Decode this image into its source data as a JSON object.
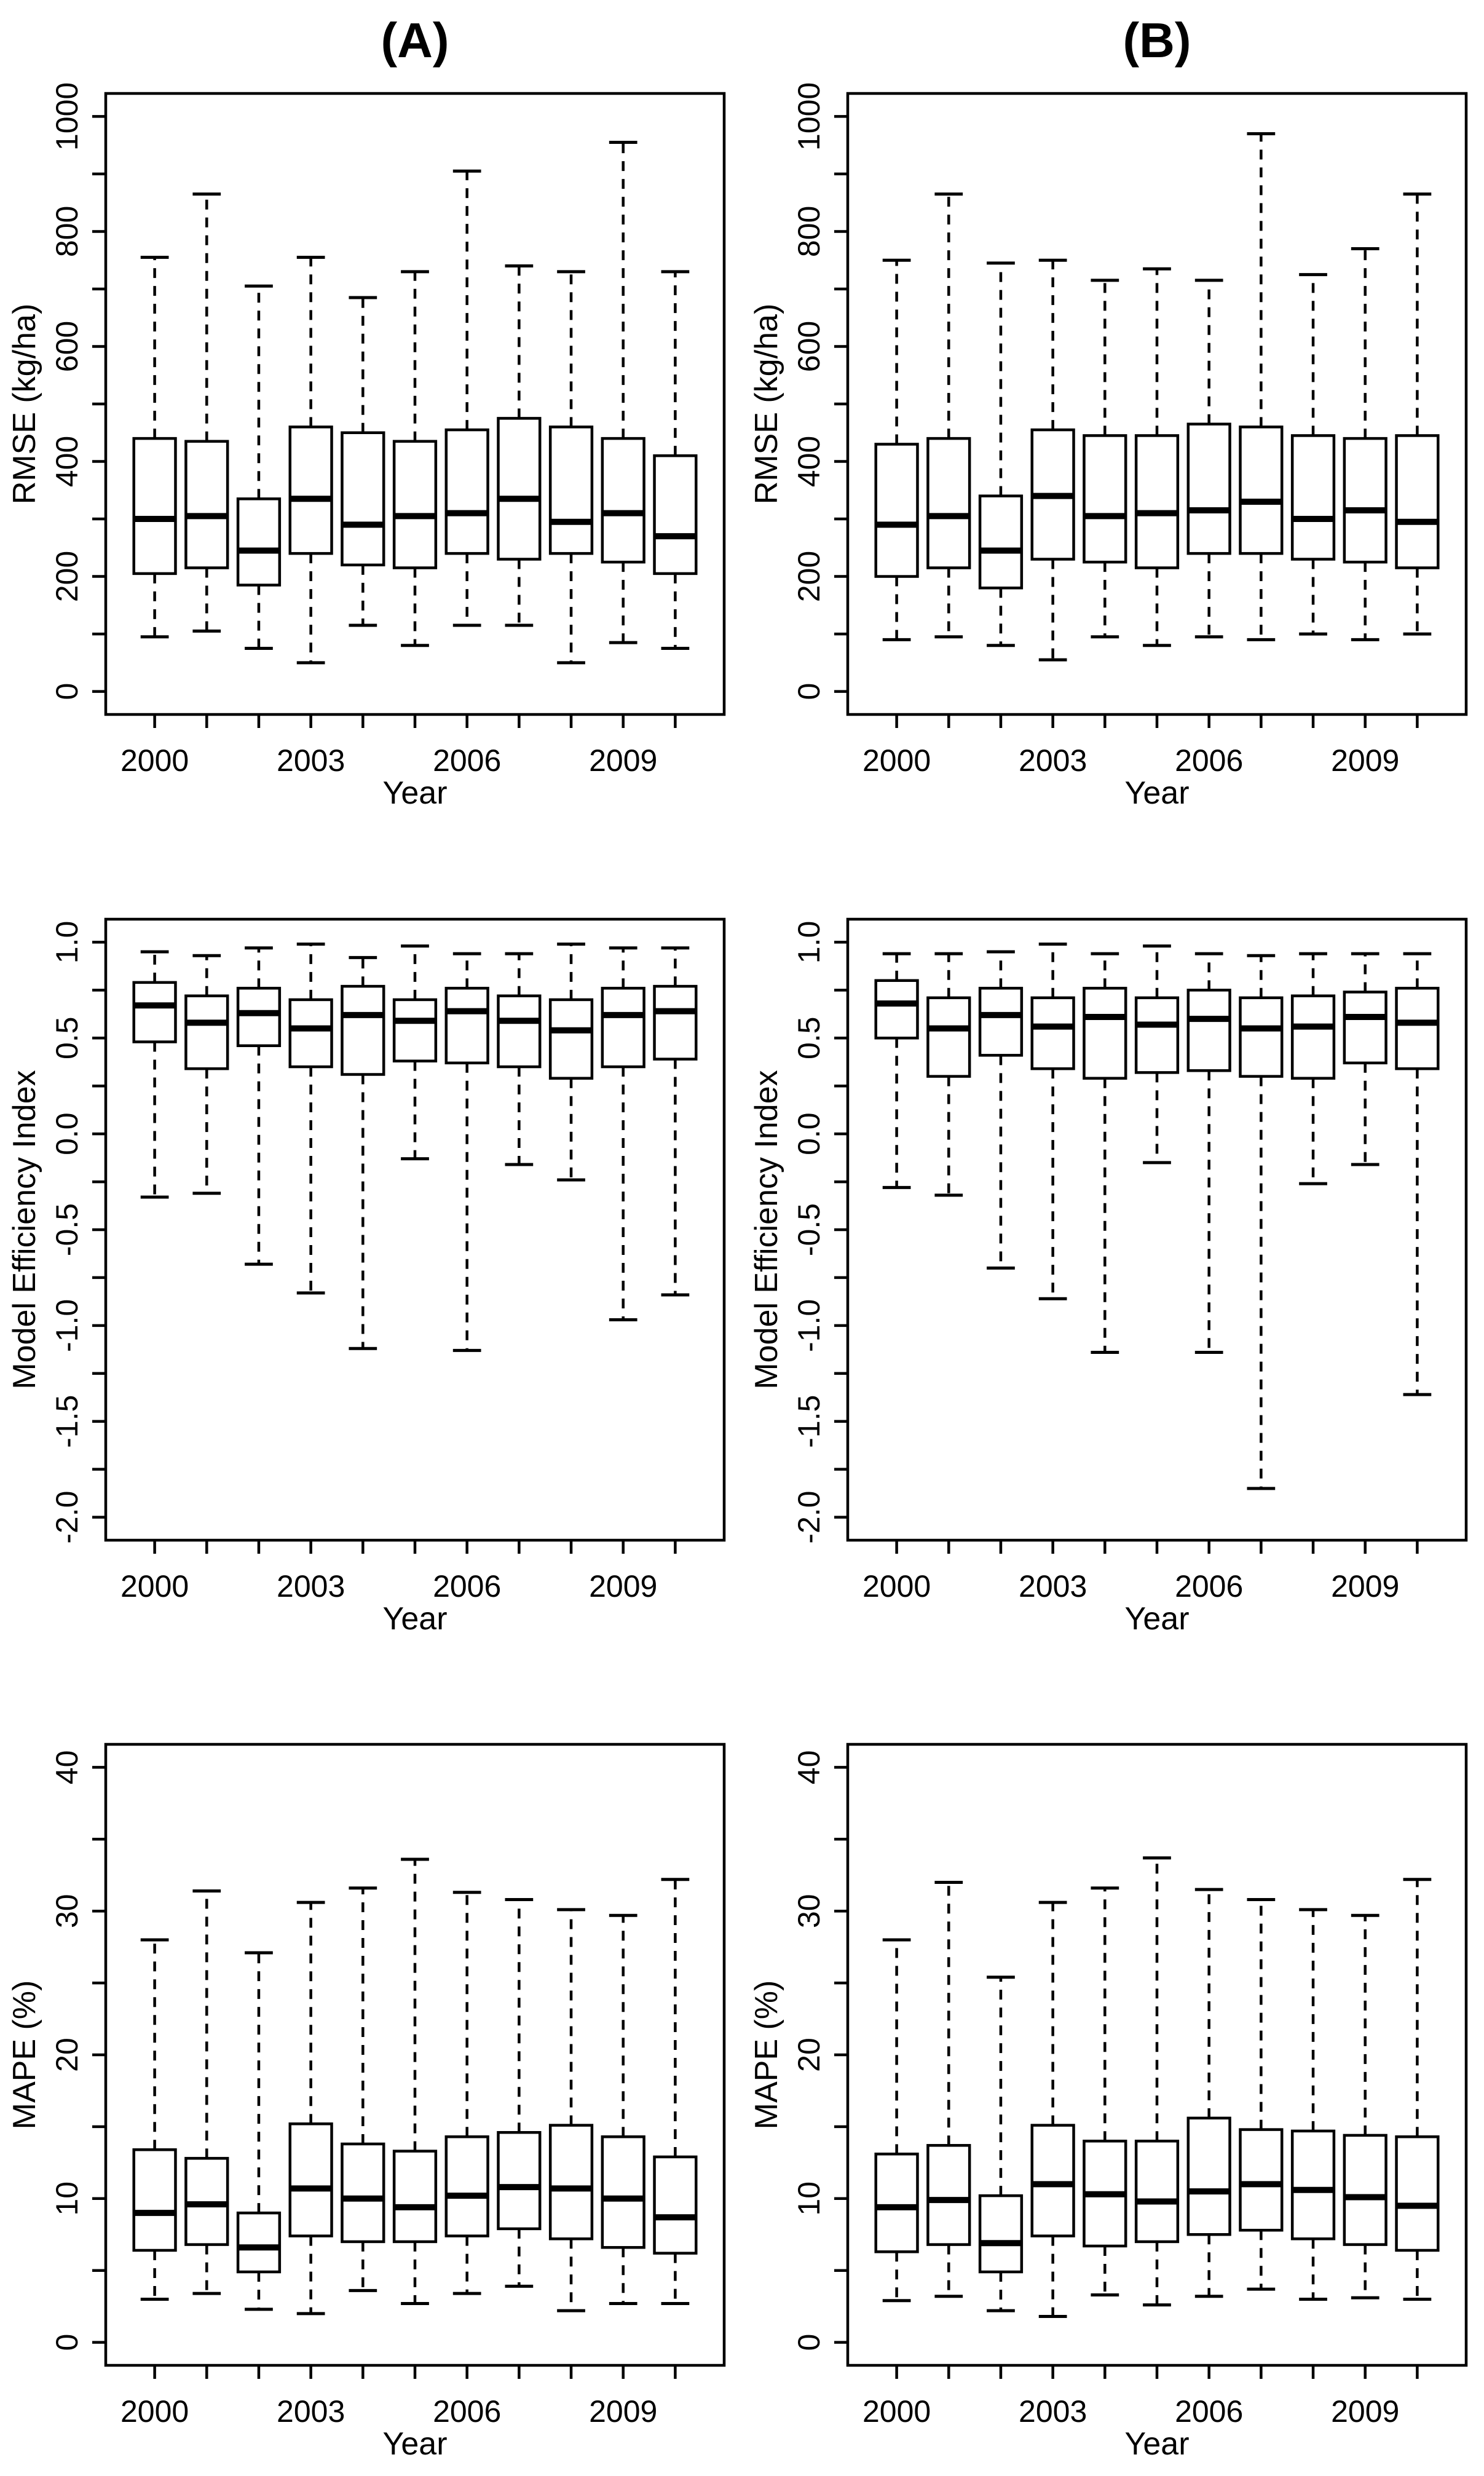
{
  "figure": {
    "column_titles": [
      "(A)",
      "(B)"
    ],
    "x_axis_title": "Year",
    "row_y_axis_titles": [
      "RMSE (kg/ha)",
      "Model Efficiency Index",
      "MAPE (%)"
    ],
    "background_color": "#ffffff",
    "line_color": "#000000"
  },
  "chart_data": [
    {
      "id": "rmse-A",
      "type": "boxplot",
      "title": "(A)",
      "ylabel": "RMSE (kg/ha)",
      "xlabel": "Year",
      "ylim": [
        0,
        1000
      ],
      "ytick_minor": 100,
      "ytick_major": 200,
      "ytick_decimals": 0,
      "years": [
        2000,
        2001,
        2002,
        2003,
        2004,
        2005,
        2006,
        2007,
        2008,
        2009,
        2010
      ],
      "xtick_labels": [
        2000,
        2003,
        2006,
        2009
      ],
      "grid": false,
      "legend": "none",
      "boxes": [
        {
          "year": 2000,
          "low": 95,
          "q1": 205,
          "med": 300,
          "q3": 440,
          "high": 755
        },
        {
          "year": 2001,
          "low": 105,
          "q1": 215,
          "med": 305,
          "q3": 435,
          "high": 865
        },
        {
          "year": 2002,
          "low": 75,
          "q1": 185,
          "med": 245,
          "q3": 335,
          "high": 705
        },
        {
          "year": 2003,
          "low": 50,
          "q1": 240,
          "med": 335,
          "q3": 460,
          "high": 755
        },
        {
          "year": 2004,
          "low": 115,
          "q1": 220,
          "med": 290,
          "q3": 450,
          "high": 685
        },
        {
          "year": 2005,
          "low": 80,
          "q1": 215,
          "med": 305,
          "q3": 435,
          "high": 730
        },
        {
          "year": 2006,
          "low": 115,
          "q1": 240,
          "med": 310,
          "q3": 455,
          "high": 905
        },
        {
          "year": 2007,
          "low": 115,
          "q1": 230,
          "med": 335,
          "q3": 475,
          "high": 740
        },
        {
          "year": 2008,
          "low": 50,
          "q1": 240,
          "med": 295,
          "q3": 460,
          "high": 730
        },
        {
          "year": 2009,
          "low": 85,
          "q1": 225,
          "med": 310,
          "q3": 440,
          "high": 955
        },
        {
          "year": 2010,
          "low": 75,
          "q1": 205,
          "med": 270,
          "q3": 410,
          "high": 730
        }
      ]
    },
    {
      "id": "rmse-B",
      "type": "boxplot",
      "title": "(B)",
      "ylabel": "RMSE (kg/ha)",
      "xlabel": "Year",
      "ylim": [
        0,
        1000
      ],
      "ytick_minor": 100,
      "ytick_major": 200,
      "ytick_decimals": 0,
      "years": [
        2000,
        2001,
        2002,
        2003,
        2004,
        2005,
        2006,
        2007,
        2008,
        2009,
        2010
      ],
      "xtick_labels": [
        2000,
        2003,
        2006,
        2009
      ],
      "grid": false,
      "legend": "none",
      "boxes": [
        {
          "year": 2000,
          "low": 90,
          "q1": 200,
          "med": 290,
          "q3": 430,
          "high": 750
        },
        {
          "year": 2001,
          "low": 95,
          "q1": 215,
          "med": 305,
          "q3": 440,
          "high": 865
        },
        {
          "year": 2002,
          "low": 80,
          "q1": 180,
          "med": 245,
          "q3": 340,
          "high": 745
        },
        {
          "year": 2003,
          "low": 55,
          "q1": 230,
          "med": 340,
          "q3": 455,
          "high": 750
        },
        {
          "year": 2004,
          "low": 95,
          "q1": 225,
          "med": 305,
          "q3": 445,
          "high": 715
        },
        {
          "year": 2005,
          "low": 80,
          "q1": 215,
          "med": 310,
          "q3": 445,
          "high": 735
        },
        {
          "year": 2006,
          "low": 95,
          "q1": 240,
          "med": 315,
          "q3": 465,
          "high": 715
        },
        {
          "year": 2007,
          "low": 90,
          "q1": 240,
          "med": 330,
          "q3": 460,
          "high": 970
        },
        {
          "year": 2008,
          "low": 100,
          "q1": 230,
          "med": 300,
          "q3": 445,
          "high": 725
        },
        {
          "year": 2009,
          "low": 90,
          "q1": 225,
          "med": 315,
          "q3": 440,
          "high": 770
        },
        {
          "year": 2010,
          "low": 100,
          "q1": 215,
          "med": 295,
          "q3": 445,
          "high": 865
        }
      ]
    },
    {
      "id": "mei-A",
      "type": "boxplot",
      "title": "",
      "ylabel": "Model Efficiency Index",
      "xlabel": "Year",
      "ylim": [
        -2.0,
        1.0
      ],
      "ytick_minor": 0.25,
      "ytick_major": 0.5,
      "ytick_decimals": 1,
      "years": [
        2000,
        2001,
        2002,
        2003,
        2004,
        2005,
        2006,
        2007,
        2008,
        2009,
        2010
      ],
      "xtick_labels": [
        2000,
        2003,
        2006,
        2009
      ],
      "grid": false,
      "legend": "none",
      "boxes": [
        {
          "year": 2000,
          "low": -0.33,
          "q1": 0.48,
          "med": 0.67,
          "q3": 0.79,
          "high": 0.95
        },
        {
          "year": 2001,
          "low": -0.31,
          "q1": 0.34,
          "med": 0.58,
          "q3": 0.72,
          "high": 0.93
        },
        {
          "year": 2002,
          "low": -0.68,
          "q1": 0.46,
          "med": 0.63,
          "q3": 0.76,
          "high": 0.97
        },
        {
          "year": 2003,
          "low": -0.83,
          "q1": 0.35,
          "med": 0.55,
          "q3": 0.7,
          "high": 0.99
        },
        {
          "year": 2004,
          "low": -1.12,
          "q1": 0.31,
          "med": 0.62,
          "q3": 0.77,
          "high": 0.92
        },
        {
          "year": 2005,
          "low": -0.13,
          "q1": 0.38,
          "med": 0.59,
          "q3": 0.7,
          "high": 0.98
        },
        {
          "year": 2006,
          "low": -1.13,
          "q1": 0.37,
          "med": 0.64,
          "q3": 0.76,
          "high": 0.94
        },
        {
          "year": 2007,
          "low": -0.16,
          "q1": 0.35,
          "med": 0.59,
          "q3": 0.72,
          "high": 0.94
        },
        {
          "year": 2008,
          "low": -0.24,
          "q1": 0.29,
          "med": 0.54,
          "q3": 0.7,
          "high": 0.99
        },
        {
          "year": 2009,
          "low": -0.97,
          "q1": 0.35,
          "med": 0.62,
          "q3": 0.76,
          "high": 0.97
        },
        {
          "year": 2010,
          "low": -0.84,
          "q1": 0.39,
          "med": 0.64,
          "q3": 0.77,
          "high": 0.97
        }
      ]
    },
    {
      "id": "mei-B",
      "type": "boxplot",
      "title": "",
      "ylabel": "Model Efficiency Index",
      "xlabel": "Year",
      "ylim": [
        -2.0,
        1.0
      ],
      "ytick_minor": 0.25,
      "ytick_major": 0.5,
      "ytick_decimals": 1,
      "years": [
        2000,
        2001,
        2002,
        2003,
        2004,
        2005,
        2006,
        2007,
        2008,
        2009,
        2010
      ],
      "xtick_labels": [
        2000,
        2003,
        2006,
        2009
      ],
      "grid": false,
      "legend": "none",
      "boxes": [
        {
          "year": 2000,
          "low": -0.28,
          "q1": 0.5,
          "med": 0.68,
          "q3": 0.8,
          "high": 0.94
        },
        {
          "year": 2001,
          "low": -0.32,
          "q1": 0.3,
          "med": 0.55,
          "q3": 0.71,
          "high": 0.94
        },
        {
          "year": 2002,
          "low": -0.7,
          "q1": 0.41,
          "med": 0.62,
          "q3": 0.76,
          "high": 0.95
        },
        {
          "year": 2003,
          "low": -0.86,
          "q1": 0.34,
          "med": 0.56,
          "q3": 0.71,
          "high": 0.99
        },
        {
          "year": 2004,
          "low": -1.14,
          "q1": 0.29,
          "med": 0.61,
          "q3": 0.76,
          "high": 0.94
        },
        {
          "year": 2005,
          "low": -0.15,
          "q1": 0.32,
          "med": 0.57,
          "q3": 0.71,
          "high": 0.98
        },
        {
          "year": 2006,
          "low": -1.14,
          "q1": 0.33,
          "med": 0.6,
          "q3": 0.75,
          "high": 0.94
        },
        {
          "year": 2007,
          "low": -1.85,
          "q1": 0.3,
          "med": 0.55,
          "q3": 0.71,
          "high": 0.93
        },
        {
          "year": 2008,
          "low": -0.26,
          "q1": 0.29,
          "med": 0.56,
          "q3": 0.72,
          "high": 0.94
        },
        {
          "year": 2009,
          "low": -0.16,
          "q1": 0.37,
          "med": 0.61,
          "q3": 0.74,
          "high": 0.94
        },
        {
          "year": 2010,
          "low": -1.36,
          "q1": 0.34,
          "med": 0.58,
          "q3": 0.76,
          "high": 0.94
        }
      ]
    },
    {
      "id": "mape-A",
      "type": "boxplot",
      "title": "",
      "ylabel": "MAPE (%)",
      "xlabel": "Year",
      "ylim": [
        0,
        40
      ],
      "ytick_minor": 5,
      "ytick_major": 10,
      "ytick_decimals": 0,
      "years": [
        2000,
        2001,
        2002,
        2003,
        2004,
        2005,
        2006,
        2007,
        2008,
        2009,
        2010
      ],
      "xtick_labels": [
        2000,
        2003,
        2006,
        2009
      ],
      "grid": false,
      "legend": "none",
      "boxes": [
        {
          "year": 2000,
          "low": 3.0,
          "q1": 6.4,
          "med": 9.0,
          "q3": 13.4,
          "high": 28.0
        },
        {
          "year": 2001,
          "low": 3.4,
          "q1": 6.8,
          "med": 9.6,
          "q3": 12.8,
          "high": 31.4
        },
        {
          "year": 2002,
          "low": 2.3,
          "q1": 4.9,
          "med": 6.6,
          "q3": 9.0,
          "high": 27.1
        },
        {
          "year": 2003,
          "low": 2.0,
          "q1": 7.4,
          "med": 10.7,
          "q3": 15.2,
          "high": 30.6
        },
        {
          "year": 2004,
          "low": 3.6,
          "q1": 7.0,
          "med": 10.0,
          "q3": 13.8,
          "high": 31.6
        },
        {
          "year": 2005,
          "low": 2.7,
          "q1": 7.0,
          "med": 9.4,
          "q3": 13.3,
          "high": 33.6
        },
        {
          "year": 2006,
          "low": 3.4,
          "q1": 7.4,
          "med": 10.2,
          "q3": 14.3,
          "high": 31.3
        },
        {
          "year": 2007,
          "low": 3.9,
          "q1": 7.9,
          "med": 10.8,
          "q3": 14.6,
          "high": 30.8
        },
        {
          "year": 2008,
          "low": 2.2,
          "q1": 7.2,
          "med": 10.7,
          "q3": 15.1,
          "high": 30.1
        },
        {
          "year": 2009,
          "low": 2.7,
          "q1": 6.6,
          "med": 10.0,
          "q3": 14.3,
          "high": 29.7
        },
        {
          "year": 2010,
          "low": 2.7,
          "q1": 6.2,
          "med": 8.7,
          "q3": 12.9,
          "high": 32.2
        }
      ]
    },
    {
      "id": "mape-B",
      "type": "boxplot",
      "title": "",
      "ylabel": "MAPE (%)",
      "xlabel": "Year",
      "ylim": [
        0,
        40
      ],
      "ytick_minor": 5,
      "ytick_major": 10,
      "ytick_decimals": 0,
      "years": [
        2000,
        2001,
        2002,
        2003,
        2004,
        2005,
        2006,
        2007,
        2008,
        2009,
        2010
      ],
      "xtick_labels": [
        2000,
        2003,
        2006,
        2009
      ],
      "grid": false,
      "legend": "none",
      "boxes": [
        {
          "year": 2000,
          "low": 2.9,
          "q1": 6.3,
          "med": 9.4,
          "q3": 13.1,
          "high": 28.0
        },
        {
          "year": 2001,
          "low": 3.2,
          "q1": 6.8,
          "med": 9.9,
          "q3": 13.7,
          "high": 32.0
        },
        {
          "year": 2002,
          "low": 2.2,
          "q1": 4.9,
          "med": 6.9,
          "q3": 10.2,
          "high": 25.4
        },
        {
          "year": 2003,
          "low": 1.8,
          "q1": 7.4,
          "med": 11.0,
          "q3": 15.1,
          "high": 30.6
        },
        {
          "year": 2004,
          "low": 3.3,
          "q1": 6.7,
          "med": 10.3,
          "q3": 14.0,
          "high": 31.6
        },
        {
          "year": 2005,
          "low": 2.6,
          "q1": 7.0,
          "med": 9.8,
          "q3": 14.0,
          "high": 33.7
        },
        {
          "year": 2006,
          "low": 3.2,
          "q1": 7.5,
          "med": 10.5,
          "q3": 15.6,
          "high": 31.5
        },
        {
          "year": 2007,
          "low": 3.7,
          "q1": 7.8,
          "med": 11.0,
          "q3": 14.8,
          "high": 30.8
        },
        {
          "year": 2008,
          "low": 3.0,
          "q1": 7.2,
          "med": 10.6,
          "q3": 14.7,
          "high": 30.1
        },
        {
          "year": 2009,
          "low": 3.1,
          "q1": 6.8,
          "med": 10.1,
          "q3": 14.4,
          "high": 29.7
        },
        {
          "year": 2010,
          "low": 3.0,
          "q1": 6.4,
          "med": 9.5,
          "q3": 14.3,
          "high": 32.2
        }
      ]
    }
  ]
}
